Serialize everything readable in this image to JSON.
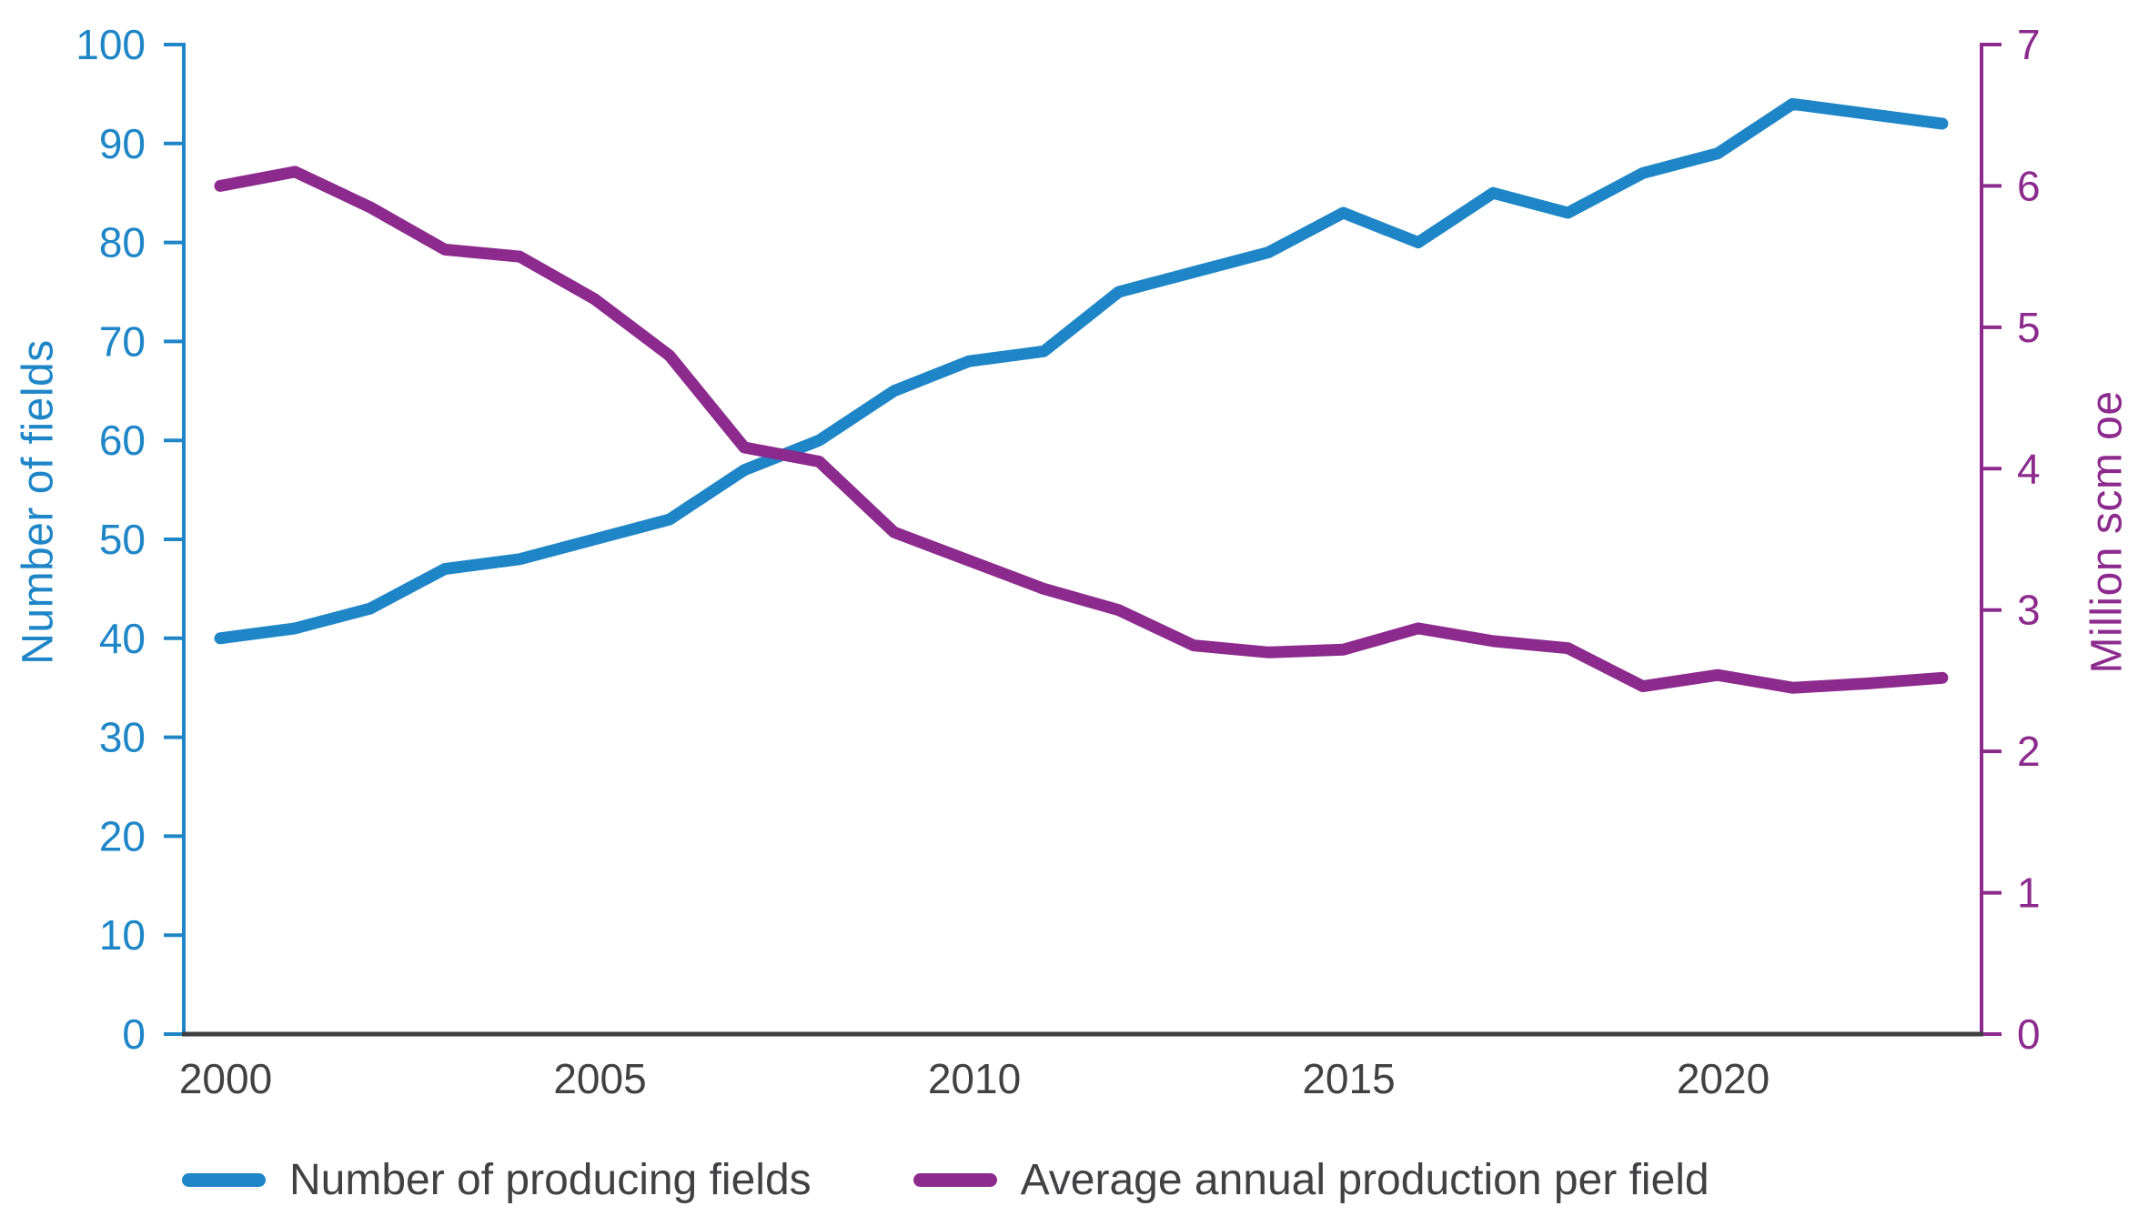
{
  "chart_data": {
    "type": "line",
    "x": [
      2000,
      2001,
      2002,
      2003,
      2004,
      2005,
      2006,
      2007,
      2008,
      2009,
      2010,
      2011,
      2012,
      2013,
      2014,
      2015,
      2016,
      2017,
      2018,
      2019,
      2020,
      2021,
      2022,
      2023
    ],
    "series": [
      {
        "name": "Number of producing fields",
        "axis": "left",
        "color": "#1E86C7",
        "values": [
          40,
          41,
          43,
          47,
          48,
          50,
          52,
          57,
          60,
          65,
          68,
          69,
          75,
          77,
          79,
          83,
          80,
          85,
          83,
          87,
          89,
          94,
          93,
          92
        ]
      },
      {
        "name": "Average annual production per field",
        "axis": "right",
        "color": "#8C2A8E",
        "values": [
          6.0,
          6.1,
          5.85,
          5.55,
          5.5,
          5.2,
          4.8,
          4.15,
          4.05,
          3.55,
          3.35,
          3.15,
          3.0,
          2.75,
          2.7,
          2.72,
          2.87,
          2.78,
          2.73,
          2.46,
          2.54,
          2.45,
          2.48,
          2.52
        ]
      }
    ],
    "left_axis": {
      "label": "Number of fields",
      "min": 0,
      "max": 100,
      "tick_step": 10,
      "color": "#1E86C7"
    },
    "right_axis": {
      "label": "Million scm oe",
      "min": 0,
      "max": 7,
      "tick_step": 1,
      "color": "#8C2A8E"
    },
    "x_axis": {
      "tick_labels": [
        2000,
        2005,
        2010,
        2015,
        2020
      ],
      "line_color": "#3F3F41",
      "label_color": "#414042"
    },
    "grid": false,
    "legend_position": "bottom",
    "xlim": [
      2000,
      2023
    ],
    "title": "",
    "xlabel": ""
  }
}
